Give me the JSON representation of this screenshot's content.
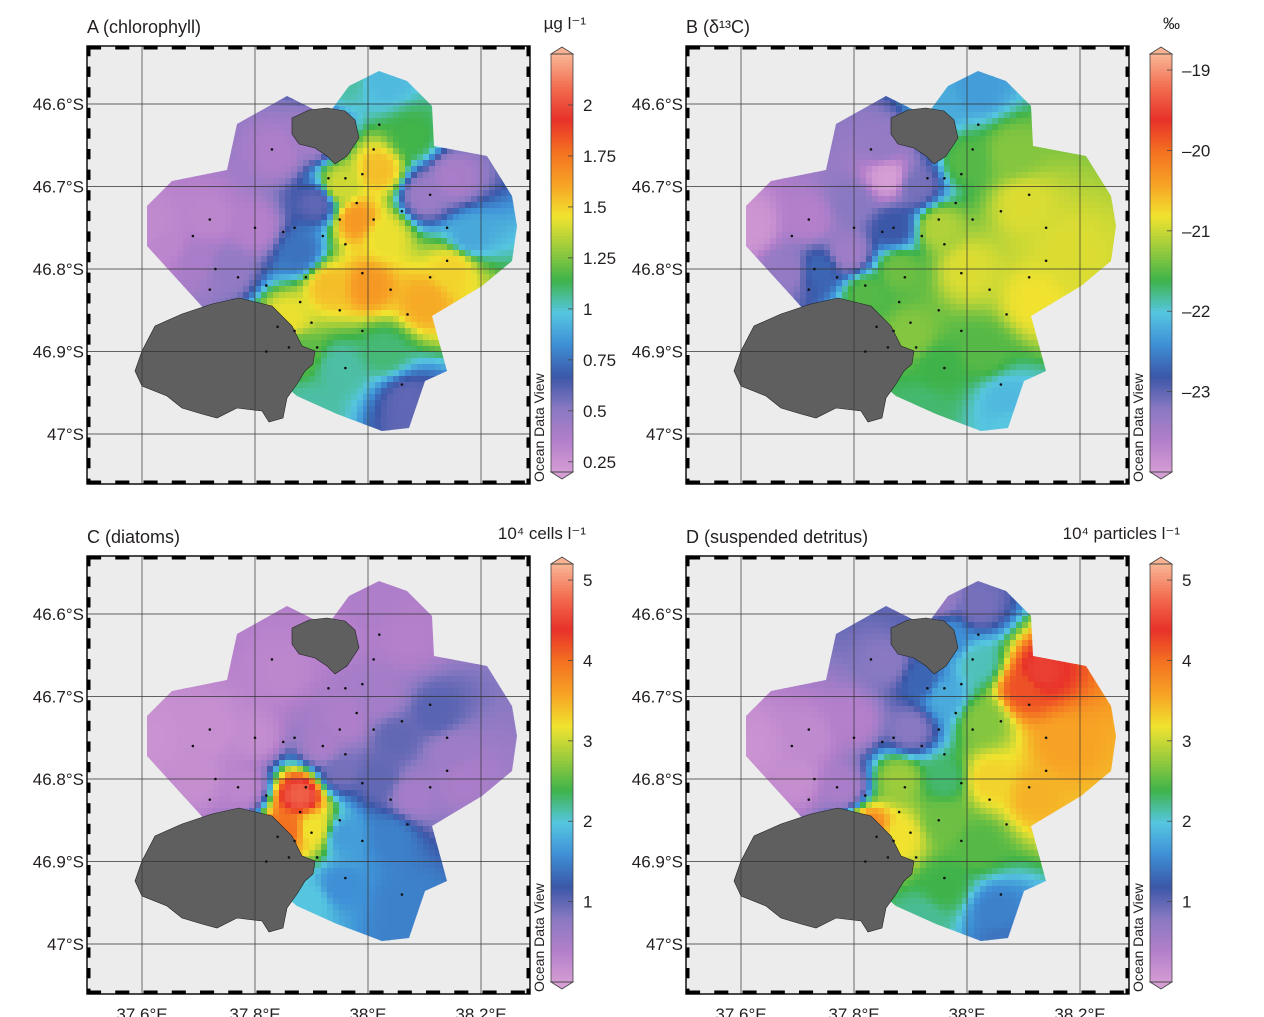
{
  "figure": {
    "map_extent": {
      "lon": [
        37.5,
        38.27
      ],
      "lat": [
        46.53,
        -47.05
      ]
    },
    "x_ticks": [
      {
        "value": 37.6,
        "label": "37.6°E"
      },
      {
        "value": 37.8,
        "label": "37.8°E"
      },
      {
        "value": 38.0,
        "label": "38°E"
      },
      {
        "value": 38.2,
        "label": "38.2°E"
      }
    ],
    "y_ticks": [
      {
        "value": 46.6,
        "label": "46.6°S"
      },
      {
        "value": 46.7,
        "label": "46.7°S"
      },
      {
        "value": 46.8,
        "label": "46.8°S"
      },
      {
        "value": 46.9,
        "label": "46.9°S"
      },
      {
        "value": 47.0,
        "label": "47°S"
      }
    ],
    "watermark": "Ocean Data View",
    "colors": {
      "land": "#5f5f5f",
      "sea_background": "#ececec",
      "colormap": [
        "#d59ed4",
        "#b47fcb",
        "#8a79c2",
        "#3b57a8",
        "#3e8fd6",
        "#56c6e0",
        "#3fb34a",
        "#9bcc3c",
        "#f1e22f",
        "#f7a225",
        "#f37121",
        "#e8312a",
        "#f26d50",
        "#f9b393"
      ]
    },
    "stations": [
      [
        37.83,
        -46.655
      ],
      [
        38.02,
        -46.625
      ],
      [
        37.93,
        -46.69
      ],
      [
        37.96,
        -46.69
      ],
      [
        37.99,
        -46.685
      ],
      [
        38.01,
        -46.655
      ],
      [
        37.98,
        -46.72
      ],
      [
        38.06,
        -46.73
      ],
      [
        38.11,
        -46.71
      ],
      [
        37.72,
        -46.74
      ],
      [
        37.8,
        -46.75
      ],
      [
        37.87,
        -46.75
      ],
      [
        37.95,
        -46.74
      ],
      [
        38.01,
        -46.74
      ],
      [
        37.69,
        -46.76
      ],
      [
        37.85,
        -46.755
      ],
      [
        37.92,
        -46.76
      ],
      [
        37.96,
        -46.77
      ],
      [
        38.14,
        -46.75
      ],
      [
        37.73,
        -46.8
      ],
      [
        37.77,
        -46.81
      ],
      [
        37.89,
        -46.81
      ],
      [
        37.99,
        -46.805
      ],
      [
        38.11,
        -46.81
      ],
      [
        38.14,
        -46.79
      ],
      [
        37.72,
        -46.825
      ],
      [
        37.82,
        -46.82
      ],
      [
        37.88,
        -46.84
      ],
      [
        37.95,
        -46.85
      ],
      [
        38.04,
        -46.825
      ],
      [
        38.07,
        -46.855
      ],
      [
        37.84,
        -46.87
      ],
      [
        37.87,
        -46.875
      ],
      [
        37.9,
        -46.865
      ],
      [
        37.99,
        -46.875
      ],
      [
        37.86,
        -46.895
      ],
      [
        37.91,
        -46.895
      ],
      [
        37.96,
        -46.92
      ],
      [
        38.06,
        -46.94
      ],
      [
        37.82,
        -46.9
      ]
    ]
  },
  "chart_data": [
    {
      "id": "A",
      "type": "heatmap",
      "title": "A (chlorophyll)",
      "unit": "µg l⁻¹",
      "colorbar_range": [
        0.2,
        2.25
      ],
      "colorbar_ticks": [
        {
          "value": 2,
          "label": "2"
        },
        {
          "value": 1.75,
          "label": "1.75"
        },
        {
          "value": 1.5,
          "label": "1.5"
        },
        {
          "value": 1.25,
          "label": "1.25"
        },
        {
          "value": 1,
          "label": "1"
        },
        {
          "value": 0.75,
          "label": "0.75"
        },
        {
          "value": 0.5,
          "label": "0.5"
        },
        {
          "value": 0.25,
          "label": "0.25"
        }
      ],
      "field_points": [
        [
          37.62,
          -46.75,
          0.3
        ],
        [
          37.72,
          -46.74,
          0.32
        ],
        [
          37.8,
          -46.75,
          0.35
        ],
        [
          37.84,
          -46.66,
          0.38
        ],
        [
          37.9,
          -46.64,
          0.42
        ],
        [
          37.96,
          -46.57,
          1.05
        ],
        [
          38.03,
          -46.57,
          0.95
        ],
        [
          38.08,
          -46.64,
          1.15
        ],
        [
          38.02,
          -46.68,
          1.55
        ],
        [
          37.95,
          -46.7,
          1.4
        ],
        [
          37.98,
          -46.74,
          1.65
        ],
        [
          38.03,
          -46.76,
          1.45
        ],
        [
          38.1,
          -46.71,
          0.45
        ],
        [
          38.15,
          -46.69,
          0.4
        ],
        [
          38.18,
          -46.76,
          0.9
        ],
        [
          38.15,
          -46.8,
          1.5
        ],
        [
          38.1,
          -46.84,
          1.6
        ],
        [
          38.0,
          -46.82,
          1.65
        ],
        [
          37.93,
          -46.82,
          1.55
        ],
        [
          37.86,
          -46.86,
          1.45
        ],
        [
          37.88,
          -46.9,
          1.2
        ],
        [
          37.95,
          -46.92,
          1.05
        ],
        [
          38.03,
          -46.9,
          1.1
        ],
        [
          38.07,
          -46.96,
          0.6
        ],
        [
          38.08,
          -46.99,
          0.6
        ],
        [
          37.9,
          -46.97,
          1.05
        ],
        [
          37.75,
          -46.8,
          0.48
        ],
        [
          37.7,
          -46.79,
          0.4
        ],
        [
          37.64,
          -46.77,
          0.32
        ],
        [
          37.88,
          -46.78,
          0.75
        ],
        [
          37.91,
          -46.72,
          0.6
        ]
      ]
    },
    {
      "id": "B",
      "type": "heatmap",
      "title": "B (δ¹³C)",
      "unit": "‰",
      "colorbar_range": [
        -24.0,
        -18.8
      ],
      "colorbar_ticks": [
        {
          "value": -19,
          "label": "–19"
        },
        {
          "value": -20,
          "label": "–20"
        },
        {
          "value": -21,
          "label": "–21"
        },
        {
          "value": -22,
          "label": "–22"
        },
        {
          "value": -23,
          "label": "–23"
        }
      ],
      "field_points": [
        [
          37.62,
          -46.75,
          -23.9
        ],
        [
          37.72,
          -46.74,
          -23.6
        ],
        [
          37.8,
          -46.72,
          -23.2
        ],
        [
          37.85,
          -46.65,
          -23.3
        ],
        [
          37.86,
          -46.69,
          -24.0
        ],
        [
          37.91,
          -46.7,
          -23.1
        ],
        [
          37.95,
          -46.6,
          -22.2
        ],
        [
          38.02,
          -46.58,
          -22.3
        ],
        [
          38.0,
          -46.67,
          -21.5
        ],
        [
          38.08,
          -46.66,
          -21.3
        ],
        [
          38.1,
          -46.72,
          -20.9
        ],
        [
          38.18,
          -46.78,
          -20.9
        ],
        [
          38.12,
          -46.84,
          -20.8
        ],
        [
          38.0,
          -46.8,
          -20.9
        ],
        [
          37.95,
          -46.75,
          -21.1
        ],
        [
          37.88,
          -46.8,
          -21.4
        ],
        [
          37.82,
          -46.83,
          -21.5
        ],
        [
          37.9,
          -46.88,
          -21.3
        ],
        [
          37.95,
          -46.92,
          -21.6
        ],
        [
          38.03,
          -46.9,
          -21.5
        ],
        [
          38.07,
          -46.96,
          -22.1
        ],
        [
          38.08,
          -46.99,
          -22.0
        ],
        [
          37.92,
          -46.97,
          -21.7
        ],
        [
          37.74,
          -46.8,
          -22.7
        ],
        [
          37.68,
          -46.8,
          -23.3
        ],
        [
          37.87,
          -46.75,
          -22.8
        ],
        [
          37.79,
          -46.78,
          -23.4
        ]
      ]
    },
    {
      "id": "C",
      "type": "heatmap",
      "title": "C (diatoms)",
      "unit": "10⁴ cells l⁻¹",
      "colorbar_range": [
        0.0,
        5.2
      ],
      "colorbar_ticks": [
        {
          "value": 5,
          "label": "5"
        },
        {
          "value": 4,
          "label": "4"
        },
        {
          "value": 3,
          "label": "3"
        },
        {
          "value": 2,
          "label": "2"
        },
        {
          "value": 1,
          "label": "1"
        }
      ],
      "field_points": [
        [
          37.62,
          -46.75,
          0.15
        ],
        [
          37.72,
          -46.74,
          0.18
        ],
        [
          37.8,
          -46.75,
          0.22
        ],
        [
          37.85,
          -46.67,
          0.3
        ],
        [
          37.93,
          -46.62,
          0.35
        ],
        [
          38.0,
          -46.59,
          0.45
        ],
        [
          38.07,
          -46.63,
          0.4
        ],
        [
          38.02,
          -46.7,
          0.55
        ],
        [
          37.96,
          -46.73,
          0.45
        ],
        [
          38.05,
          -46.75,
          1.0
        ],
        [
          38.12,
          -46.72,
          1.05
        ],
        [
          38.15,
          -46.77,
          0.6
        ],
        [
          38.17,
          -46.8,
          0.5
        ],
        [
          38.08,
          -46.82,
          0.55
        ],
        [
          38.02,
          -46.8,
          1.0
        ],
        [
          37.95,
          -46.79,
          0.9
        ],
        [
          37.88,
          -46.82,
          4.7
        ],
        [
          37.86,
          -46.86,
          4.0
        ],
        [
          37.9,
          -46.86,
          3.2
        ],
        [
          37.96,
          -46.87,
          1.7
        ],
        [
          38.04,
          -46.87,
          1.5
        ],
        [
          37.95,
          -46.93,
          1.6
        ],
        [
          38.06,
          -46.95,
          1.5
        ],
        [
          38.06,
          -46.99,
          1.5
        ],
        [
          37.9,
          -46.95,
          2.0
        ],
        [
          37.92,
          -46.76,
          0.5
        ],
        [
          37.78,
          -46.81,
          0.3
        ],
        [
          37.7,
          -46.8,
          0.2
        ]
      ]
    },
    {
      "id": "D",
      "type": "heatmap",
      "title": "D (suspended detritus)",
      "unit": "10⁴ particles l⁻¹",
      "colorbar_range": [
        0.0,
        5.2
      ],
      "colorbar_ticks": [
        {
          "value": 5,
          "label": "5"
        },
        {
          "value": 4,
          "label": "4"
        },
        {
          "value": 3,
          "label": "3"
        },
        {
          "value": 2,
          "label": "2"
        },
        {
          "value": 1,
          "label": "1"
        }
      ],
      "field_points": [
        [
          37.62,
          -46.76,
          0.15
        ],
        [
          37.72,
          -46.75,
          0.25
        ],
        [
          37.8,
          -46.73,
          0.4
        ],
        [
          37.86,
          -46.66,
          0.8
        ],
        [
          37.95,
          -46.58,
          0.7
        ],
        [
          38.02,
          -46.59,
          0.9
        ],
        [
          37.97,
          -46.63,
          1.6
        ],
        [
          38.02,
          -46.66,
          2.1
        ],
        [
          37.96,
          -46.7,
          1.8
        ],
        [
          37.9,
          -46.74,
          0.8
        ],
        [
          38.03,
          -46.73,
          2.7
        ],
        [
          38.1,
          -46.69,
          4.2
        ],
        [
          38.13,
          -46.67,
          4.5
        ],
        [
          38.17,
          -46.76,
          3.6
        ],
        [
          38.12,
          -46.82,
          3.5
        ],
        [
          38.04,
          -46.8,
          3.3
        ],
        [
          37.96,
          -46.8,
          2.3
        ],
        [
          37.88,
          -46.8,
          2.8
        ],
        [
          37.83,
          -46.86,
          3.8
        ],
        [
          37.88,
          -46.87,
          3.2
        ],
        [
          37.96,
          -46.85,
          2.6
        ],
        [
          38.02,
          -46.88,
          2.5
        ],
        [
          37.96,
          -46.93,
          2.4
        ],
        [
          38.05,
          -46.96,
          1.5
        ],
        [
          38.06,
          -47.0,
          1.4
        ],
        [
          37.92,
          -46.97,
          2.2
        ],
        [
          37.78,
          -46.81,
          0.5
        ],
        [
          37.7,
          -46.8,
          0.2
        ],
        [
          37.92,
          -46.68,
          1.3
        ]
      ]
    }
  ]
}
